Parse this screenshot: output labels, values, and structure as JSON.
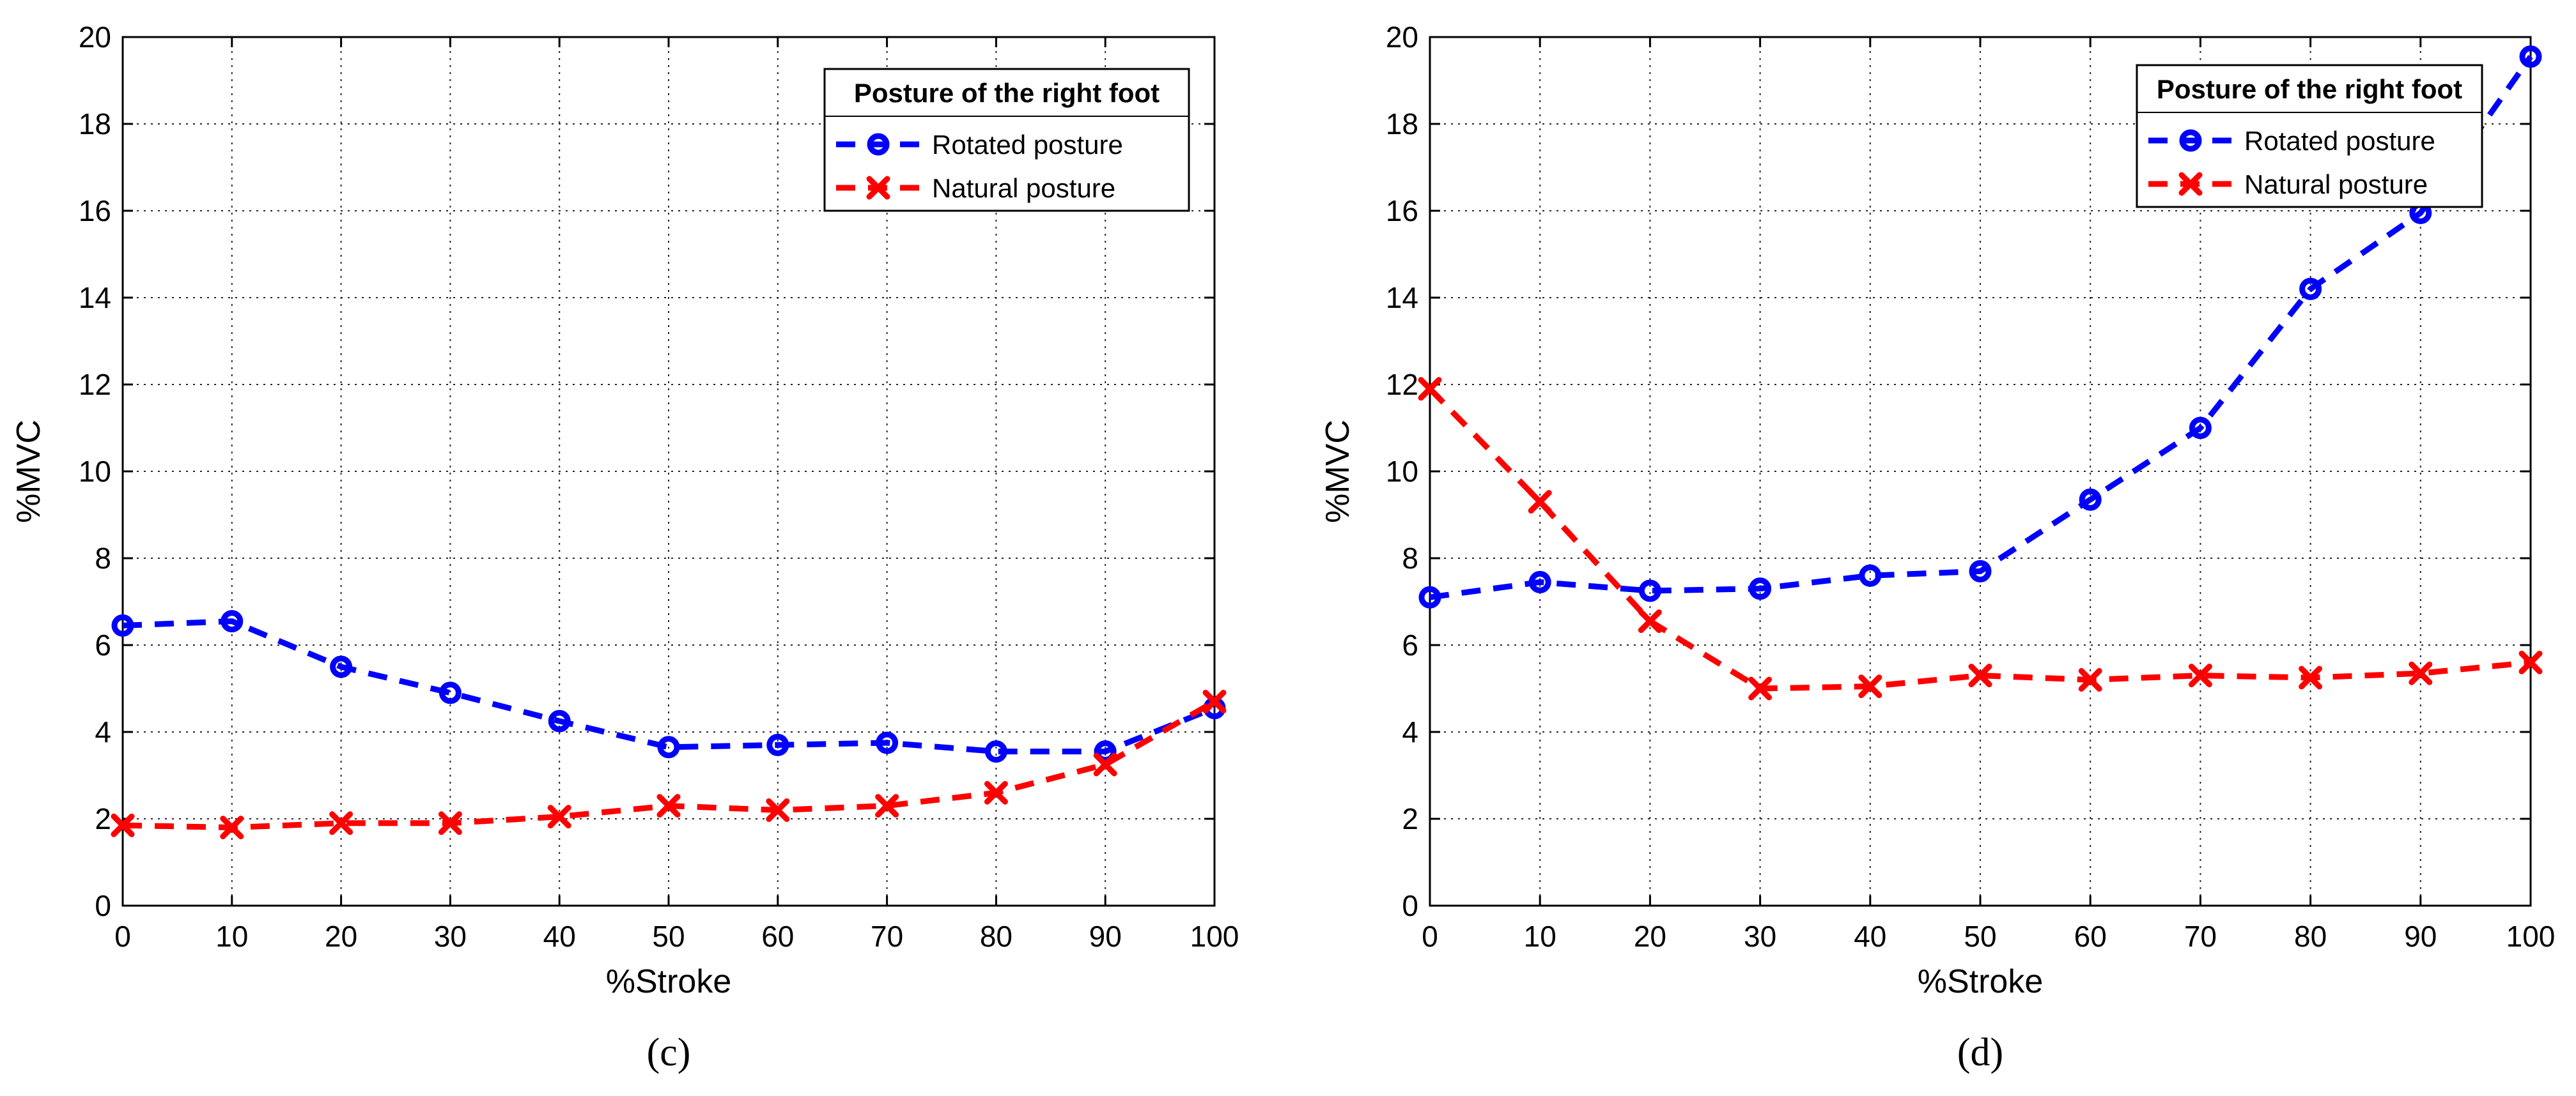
{
  "chart_data": [
    {
      "type": "line",
      "panel_label": "(c)",
      "title": "",
      "xlabel": "%Stroke",
      "ylabel": "%MVC",
      "xlim": [
        0,
        100
      ],
      "ylim": [
        0,
        20
      ],
      "xticks": [
        0,
        10,
        20,
        30,
        40,
        50,
        60,
        70,
        80,
        90,
        100
      ],
      "yticks": [
        0,
        2,
        4,
        6,
        8,
        10,
        12,
        14,
        16,
        18,
        20
      ],
      "grid": true,
      "legend_title": "Posture of the right foot",
      "legend_position": "top-right",
      "x": [
        0,
        10,
        20,
        30,
        40,
        50,
        60,
        70,
        80,
        90,
        100
      ],
      "series": [
        {
          "name": "Rotated posture",
          "color": "#0000ff",
          "marker": "circle",
          "values": [
            6.45,
            6.55,
            5.5,
            4.9,
            4.25,
            3.65,
            3.7,
            3.75,
            3.55,
            3.55,
            4.55
          ]
        },
        {
          "name": "Natural posture",
          "color": "#ff0000",
          "marker": "x",
          "values": [
            1.85,
            1.8,
            1.9,
            1.9,
            2.05,
            2.3,
            2.2,
            2.3,
            2.6,
            3.25,
            4.7
          ]
        }
      ]
    },
    {
      "type": "line",
      "panel_label": "(d)",
      "title": "",
      "xlabel": "%Stroke",
      "ylabel": "%MVC",
      "xlim": [
        0,
        100
      ],
      "ylim": [
        0,
        20
      ],
      "xticks": [
        0,
        10,
        20,
        30,
        40,
        50,
        60,
        70,
        80,
        90,
        100
      ],
      "yticks": [
        0,
        2,
        4,
        6,
        8,
        10,
        12,
        14,
        16,
        18,
        20
      ],
      "grid": true,
      "legend_title": "Posture of the right foot",
      "legend_position": "top-right",
      "x": [
        0,
        10,
        20,
        30,
        40,
        50,
        60,
        70,
        80,
        90,
        100
      ],
      "series": [
        {
          "name": "Rotated posture",
          "color": "#0000ff",
          "marker": "circle",
          "values": [
            7.1,
            7.45,
            7.25,
            7.3,
            7.6,
            7.7,
            9.35,
            11.0,
            14.2,
            15.95,
            19.55
          ]
        },
        {
          "name": "Natural posture",
          "color": "#ff0000",
          "marker": "x",
          "values": [
            11.9,
            9.3,
            6.55,
            5.0,
            5.05,
            5.3,
            5.2,
            5.3,
            5.25,
            5.35,
            5.6
          ]
        }
      ]
    }
  ]
}
